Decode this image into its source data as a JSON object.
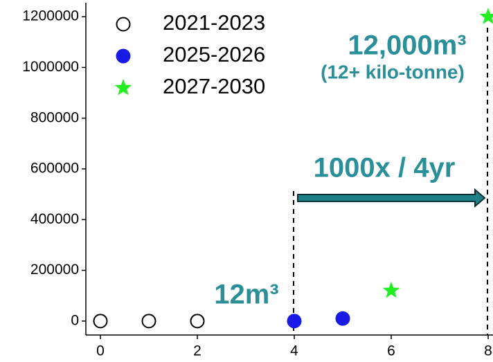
{
  "chart_data": {
    "type": "scatter",
    "series": [
      {
        "name": "2021-2023",
        "color": "#000000",
        "marker": "open-circle",
        "x": [
          0,
          1,
          2
        ],
        "values": [
          0,
          0,
          0
        ]
      },
      {
        "name": "2025-2026",
        "color": "#1a1ae6",
        "marker": "circle",
        "x": [
          4,
          5
        ],
        "values": [
          0,
          10000
        ]
      },
      {
        "name": "2027-2030",
        "color": "#22ee22",
        "marker": "star",
        "x": [
          6,
          8
        ],
        "values": [
          120000,
          1200000
        ]
      }
    ],
    "xlim": [
      -0.3,
      8.1
    ],
    "ylim": [
      -55000,
      1255000
    ],
    "xticks": [
      0,
      2,
      4,
      6,
      8
    ],
    "yticks": [
      0,
      200000,
      400000,
      600000,
      800000,
      1000000,
      1200000
    ],
    "grid": false,
    "legend": "upper left",
    "annotations": [
      "12,000m³",
      "(12+ kilo-tonne)",
      "1000x / 4yr",
      "12m³"
    ]
  }
}
